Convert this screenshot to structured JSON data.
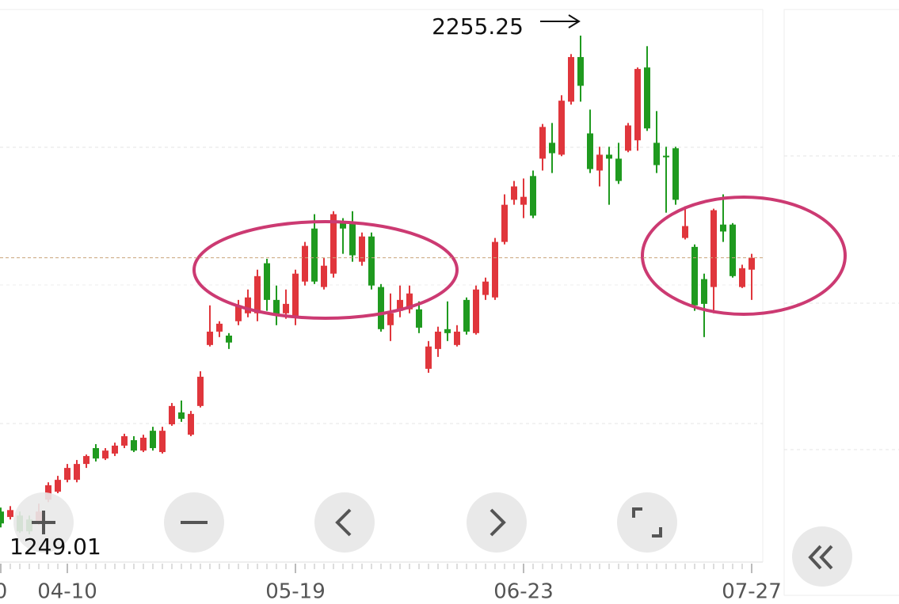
{
  "chart_data": {
    "type": "candlestick",
    "categories": [
      "0",
      null,
      null,
      null,
      null,
      null,
      null,
      "04-10",
      null,
      null,
      null,
      null,
      null,
      null,
      null,
      null,
      null,
      null,
      null,
      null,
      null,
      null,
      null,
      null,
      null,
      null,
      null,
      null,
      null,
      null,
      null,
      "05-19",
      null,
      null,
      null,
      null,
      null,
      null,
      null,
      null,
      null,
      null,
      null,
      null,
      null,
      null,
      null,
      null,
      null,
      null,
      null,
      null,
      null,
      null,
      null,
      "06-23",
      null,
      null,
      null,
      null,
      null,
      null,
      null,
      null,
      null,
      null,
      null,
      null,
      null,
      null,
      null,
      null,
      null,
      null,
      null,
      null,
      null,
      null,
      null,
      "07-27"
    ],
    "open": [
      1295,
      1284,
      1287,
      1279,
      1271,
      1319,
      1335,
      1359,
      1359,
      1391,
      1423,
      1402,
      1412,
      1428,
      1439,
      1418,
      1458,
      1415,
      1471,
      1495,
      1450,
      1508,
      1631,
      1658,
      1650,
      1679,
      1695,
      1695,
      1796,
      1722,
      1695,
      1690,
      1759,
      1866,
      1748,
      1775,
      1879,
      1876,
      1799,
      1850,
      1748,
      1671,
      1700,
      1703,
      1703,
      1583,
      1623,
      1663,
      1631,
      1722,
      1655,
      1732,
      1727,
      1839,
      1924,
      1914,
      1972,
      2007,
      2039,
      2015,
      2122,
      2212,
      2058,
      1983,
      2015,
      2007,
      2023,
      2044,
      2191,
      2039,
      2013,
      2028,
      1847,
      1829,
      1764,
      1748,
      1874,
      1874,
      1748,
      1783
    ],
    "high": [
      1303,
      1306,
      1295,
      1287,
      1311,
      1354,
      1367,
      1391,
      1399,
      1410,
      1431,
      1423,
      1434,
      1452,
      1447,
      1450,
      1466,
      1466,
      1514,
      1519,
      1498,
      1578,
      1711,
      1679,
      1655,
      1722,
      1743,
      1783,
      1805,
      1751,
      1743,
      1783,
      1839,
      1895,
      1807,
      1901,
      1887,
      1901,
      1858,
      1858,
      1754,
      1735,
      1751,
      1751,
      1719,
      1639,
      1668,
      1719,
      1671,
      1727,
      1751,
      1767,
      1847,
      1935,
      1962,
      1967,
      1983,
      2077,
      2079,
      2135,
      2218,
      2255.25,
      2106,
      2031,
      2031,
      2039,
      2079,
      2191,
      2234,
      2103,
      2031,
      2031,
      1911,
      1834,
      1775,
      1906,
      1935,
      1877,
      1793,
      1815
    ],
    "low": [
      1263,
      1279,
      1252,
      1249.01,
      1268,
      1314,
      1332,
      1354,
      1354,
      1383,
      1396,
      1399,
      1407,
      1423,
      1415,
      1415,
      1418,
      1412,
      1468,
      1476,
      1447,
      1505,
      1628,
      1647,
      1623,
      1671,
      1687,
      1679,
      1700,
      1671,
      1684,
      1671,
      1751,
      1754,
      1743,
      1767,
      1815,
      1799,
      1791,
      1743,
      1658,
      1639,
      1687,
      1695,
      1655,
      1575,
      1607,
      1639,
      1628,
      1652,
      1652,
      1722,
      1722,
      1834,
      1914,
      1887,
      1887,
      1983,
      1978,
      2012,
      2116,
      2122,
      1978,
      1951,
      1914,
      1956,
      2020,
      2023,
      2063,
      1978,
      1898,
      1914,
      1844,
      1700,
      1647,
      1695,
      1839,
      1767,
      1746,
      1722
    ],
    "close": [
      1271,
      1298,
      1255,
      1255,
      1295,
      1348,
      1359,
      1383,
      1391,
      1407,
      1402,
      1418,
      1428,
      1447,
      1418,
      1444,
      1423,
      1458,
      1508,
      1482,
      1492,
      1567,
      1658,
      1674,
      1636,
      1711,
      1727,
      1770,
      1722,
      1690,
      1714,
      1775,
      1831,
      1759,
      1791,
      1895,
      1866,
      1812,
      1850,
      1751,
      1663,
      1695,
      1722,
      1735,
      1666,
      1628,
      1658,
      1655,
      1658,
      1658,
      1743,
      1759,
      1839,
      1914,
      1951,
      1930,
      1892,
      2071,
      2018,
      2124,
      2212,
      2154,
      1986,
      2015,
      2007,
      1962,
      2074,
      2188,
      2068,
      1994,
      2010,
      1924,
      1871,
      1711,
      1714,
      1903,
      1860,
      1770,
      1786,
      1807
    ],
    "up_color": "#e0363c",
    "down_color": "#1f9a1f"
  }
}
